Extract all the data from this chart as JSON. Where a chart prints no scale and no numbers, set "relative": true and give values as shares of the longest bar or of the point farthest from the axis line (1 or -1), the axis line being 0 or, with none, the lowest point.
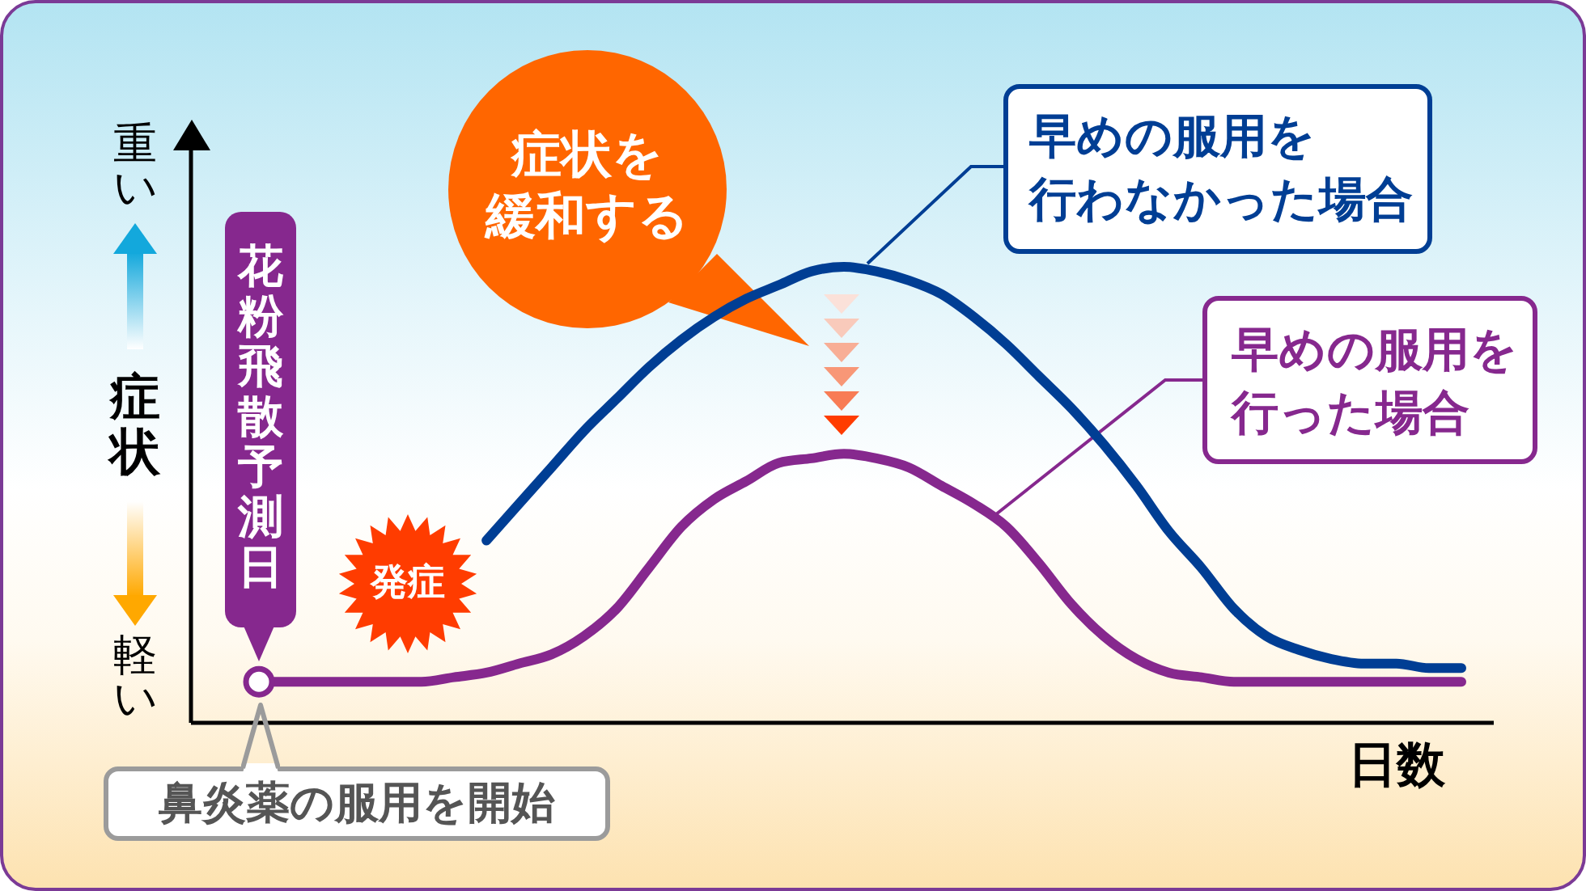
{
  "chart_data": {
    "type": "line",
    "relative": true,
    "xlabel": "日数",
    "ylabel": "症状",
    "categories": [
      null,
      null,
      null,
      null,
      null,
      null,
      null,
      null,
      null,
      null,
      null,
      null,
      null,
      null,
      null,
      null,
      null,
      null,
      null,
      null,
      null,
      null,
      null,
      null,
      null,
      null,
      null,
      null,
      null,
      null,
      null,
      null,
      null,
      null,
      null,
      null,
      null,
      null
    ],
    "series": [
      {
        "name": "早めの服用を行わなかった場合",
        "color": "#003e94",
        "values": [
          null,
          null,
          null,
          null,
          null,
          null,
          null,
          0.4,
          0.48,
          0.56,
          0.64,
          0.71,
          0.78,
          0.84,
          0.89,
          0.93,
          0.96,
          0.99,
          1.0,
          0.99,
          0.97,
          0.94,
          0.89,
          0.83,
          0.76,
          0.69,
          0.61,
          0.52,
          0.42,
          0.34,
          0.25,
          0.19,
          0.16,
          0.14,
          0.13,
          0.13,
          0.12,
          0.12
        ]
      },
      {
        "name": "早めの服用を行った場合",
        "color": "#86288e",
        "values": [
          0.09,
          0.09,
          0.09,
          0.09,
          0.09,
          0.09,
          0.1,
          0.11,
          0.13,
          0.15,
          0.19,
          0.25,
          0.34,
          0.43,
          0.49,
          0.53,
          0.57,
          0.58,
          0.59,
          0.58,
          0.56,
          0.52,
          0.48,
          0.43,
          0.35,
          0.26,
          0.19,
          0.14,
          0.11,
          0.1,
          0.09,
          0.09,
          0.09,
          0.09,
          0.09,
          0.09,
          0.09,
          0.09
        ]
      }
    ],
    "annotations": [
      "花粉飛散予測日",
      "発症",
      "症状を緩和する",
      "鼻炎薬の服用を開始",
      "重い",
      "軽い"
    ]
  }
}
